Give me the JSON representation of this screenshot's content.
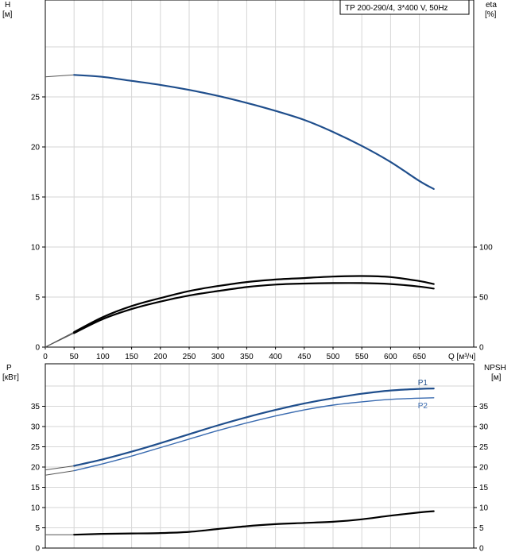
{
  "chart_data": [
    {
      "panel": "head",
      "type": "line",
      "legend": "TP 200-290/4, 3*400 V, 50Hz",
      "xlabel": "Q [м³/ч]",
      "ylabel_left": "H",
      "ylabel_left_unit": "[м]",
      "ylabel_right": "eta",
      "ylabel_right_unit": "[%]",
      "xlim": [
        0,
        700
      ],
      "ylim_left": [
        0,
        30
      ],
      "ylim_right": [
        0,
        240
      ],
      "x_ticks": [
        0,
        50,
        100,
        150,
        200,
        250,
        300,
        350,
        400,
        450,
        500,
        550,
        600,
        650
      ],
      "x_tick_labels": [
        "0",
        "50",
        "100",
        "150",
        "200",
        "250",
        "300",
        "350",
        "400",
        "450",
        "500",
        "550",
        "600",
        "650"
      ],
      "y_ticks_left": [
        0,
        5,
        10,
        15,
        20,
        25
      ],
      "y_ticks_right": [
        0,
        50,
        100
      ],
      "grid": true,
      "series": [
        {
          "axis": "left",
          "color": "#1f4e8c",
          "x": [
            50,
            100,
            150,
            200,
            250,
            300,
            350,
            400,
            450,
            500,
            550,
            600,
            650,
            675
          ],
          "y": [
            27.2,
            27.0,
            26.6,
            26.2,
            25.7,
            25.1,
            24.4,
            23.6,
            22.7,
            21.5,
            20.1,
            18.5,
            16.6,
            15.8
          ],
          "extension": {
            "x": [
              0,
              50
            ],
            "y": [
              27.0,
              27.2
            ]
          }
        },
        {
          "axis": "right",
          "color": "#000000",
          "x": [
            50,
            100,
            150,
            200,
            250,
            300,
            350,
            400,
            450,
            500,
            550,
            600,
            650,
            675
          ],
          "y": [
            15,
            30,
            41,
            49,
            56,
            61,
            65,
            67.5,
            69,
            70.5,
            71,
            70,
            66,
            63
          ],
          "extension": {
            "x": [
              0,
              50
            ],
            "y": [
              0,
              15
            ]
          }
        },
        {
          "axis": "right",
          "color": "#000000",
          "x": [
            50,
            100,
            150,
            200,
            250,
            300,
            350,
            400,
            450,
            500,
            550,
            600,
            650,
            675
          ],
          "y": [
            14,
            28,
            38,
            45.5,
            51.5,
            56,
            60,
            62.5,
            63.5,
            64,
            64,
            63,
            60.5,
            58.5
          ],
          "extension": {
            "x": [
              0,
              50
            ],
            "y": [
              0,
              14
            ]
          }
        }
      ]
    },
    {
      "panel": "power-npsh",
      "type": "line",
      "ylabel_left": "P",
      "ylabel_left_unit": "[кВт]",
      "ylabel_right": "NPSH",
      "ylabel_right_unit": "[м]",
      "xlim": [
        0,
        700
      ],
      "ylim_left": [
        0,
        40
      ],
      "ylim_right": [
        0,
        40
      ],
      "y_ticks_left": [
        0,
        5,
        10,
        15,
        20,
        25,
        30,
        35
      ],
      "y_ticks_right": [
        0,
        5,
        10,
        15,
        20,
        25,
        30,
        35
      ],
      "grid": true,
      "series": [
        {
          "name": "P1",
          "axis": "left",
          "color": "#1f4e8c",
          "x": [
            50,
            100,
            150,
            200,
            250,
            300,
            350,
            400,
            450,
            500,
            550,
            600,
            650,
            675
          ],
          "y": [
            20.3,
            21.9,
            23.8,
            25.9,
            28.1,
            30.3,
            32.3,
            34.1,
            35.7,
            37.0,
            38.1,
            38.9,
            39.3,
            39.4
          ],
          "extension": {
            "x": [
              0,
              50
            ],
            "y": [
              19.3,
              20.3
            ]
          }
        },
        {
          "name": "P2",
          "axis": "left",
          "color": "#3a6bb0",
          "x": [
            50,
            100,
            150,
            200,
            250,
            300,
            350,
            400,
            450,
            500,
            550,
            600,
            650,
            675
          ],
          "y": [
            19.1,
            20.8,
            22.7,
            24.8,
            26.9,
            29.0,
            30.9,
            32.6,
            34.1,
            35.3,
            36.1,
            36.7,
            37.0,
            37.1
          ],
          "extension": {
            "x": [
              0,
              50
            ],
            "y": [
              18.0,
              19.1
            ]
          }
        },
        {
          "name": "",
          "axis": "right",
          "color": "#000000",
          "x": [
            50,
            100,
            150,
            200,
            250,
            300,
            350,
            400,
            450,
            500,
            550,
            600,
            650,
            675
          ],
          "y": [
            3.3,
            3.5,
            3.6,
            3.7,
            4.0,
            4.7,
            5.4,
            5.9,
            6.2,
            6.5,
            7.1,
            8.0,
            8.8,
            9.1
          ],
          "extension": {
            "x": [
              0,
              50
            ],
            "y": [
              3.3,
              3.3
            ]
          }
        }
      ]
    }
  ]
}
